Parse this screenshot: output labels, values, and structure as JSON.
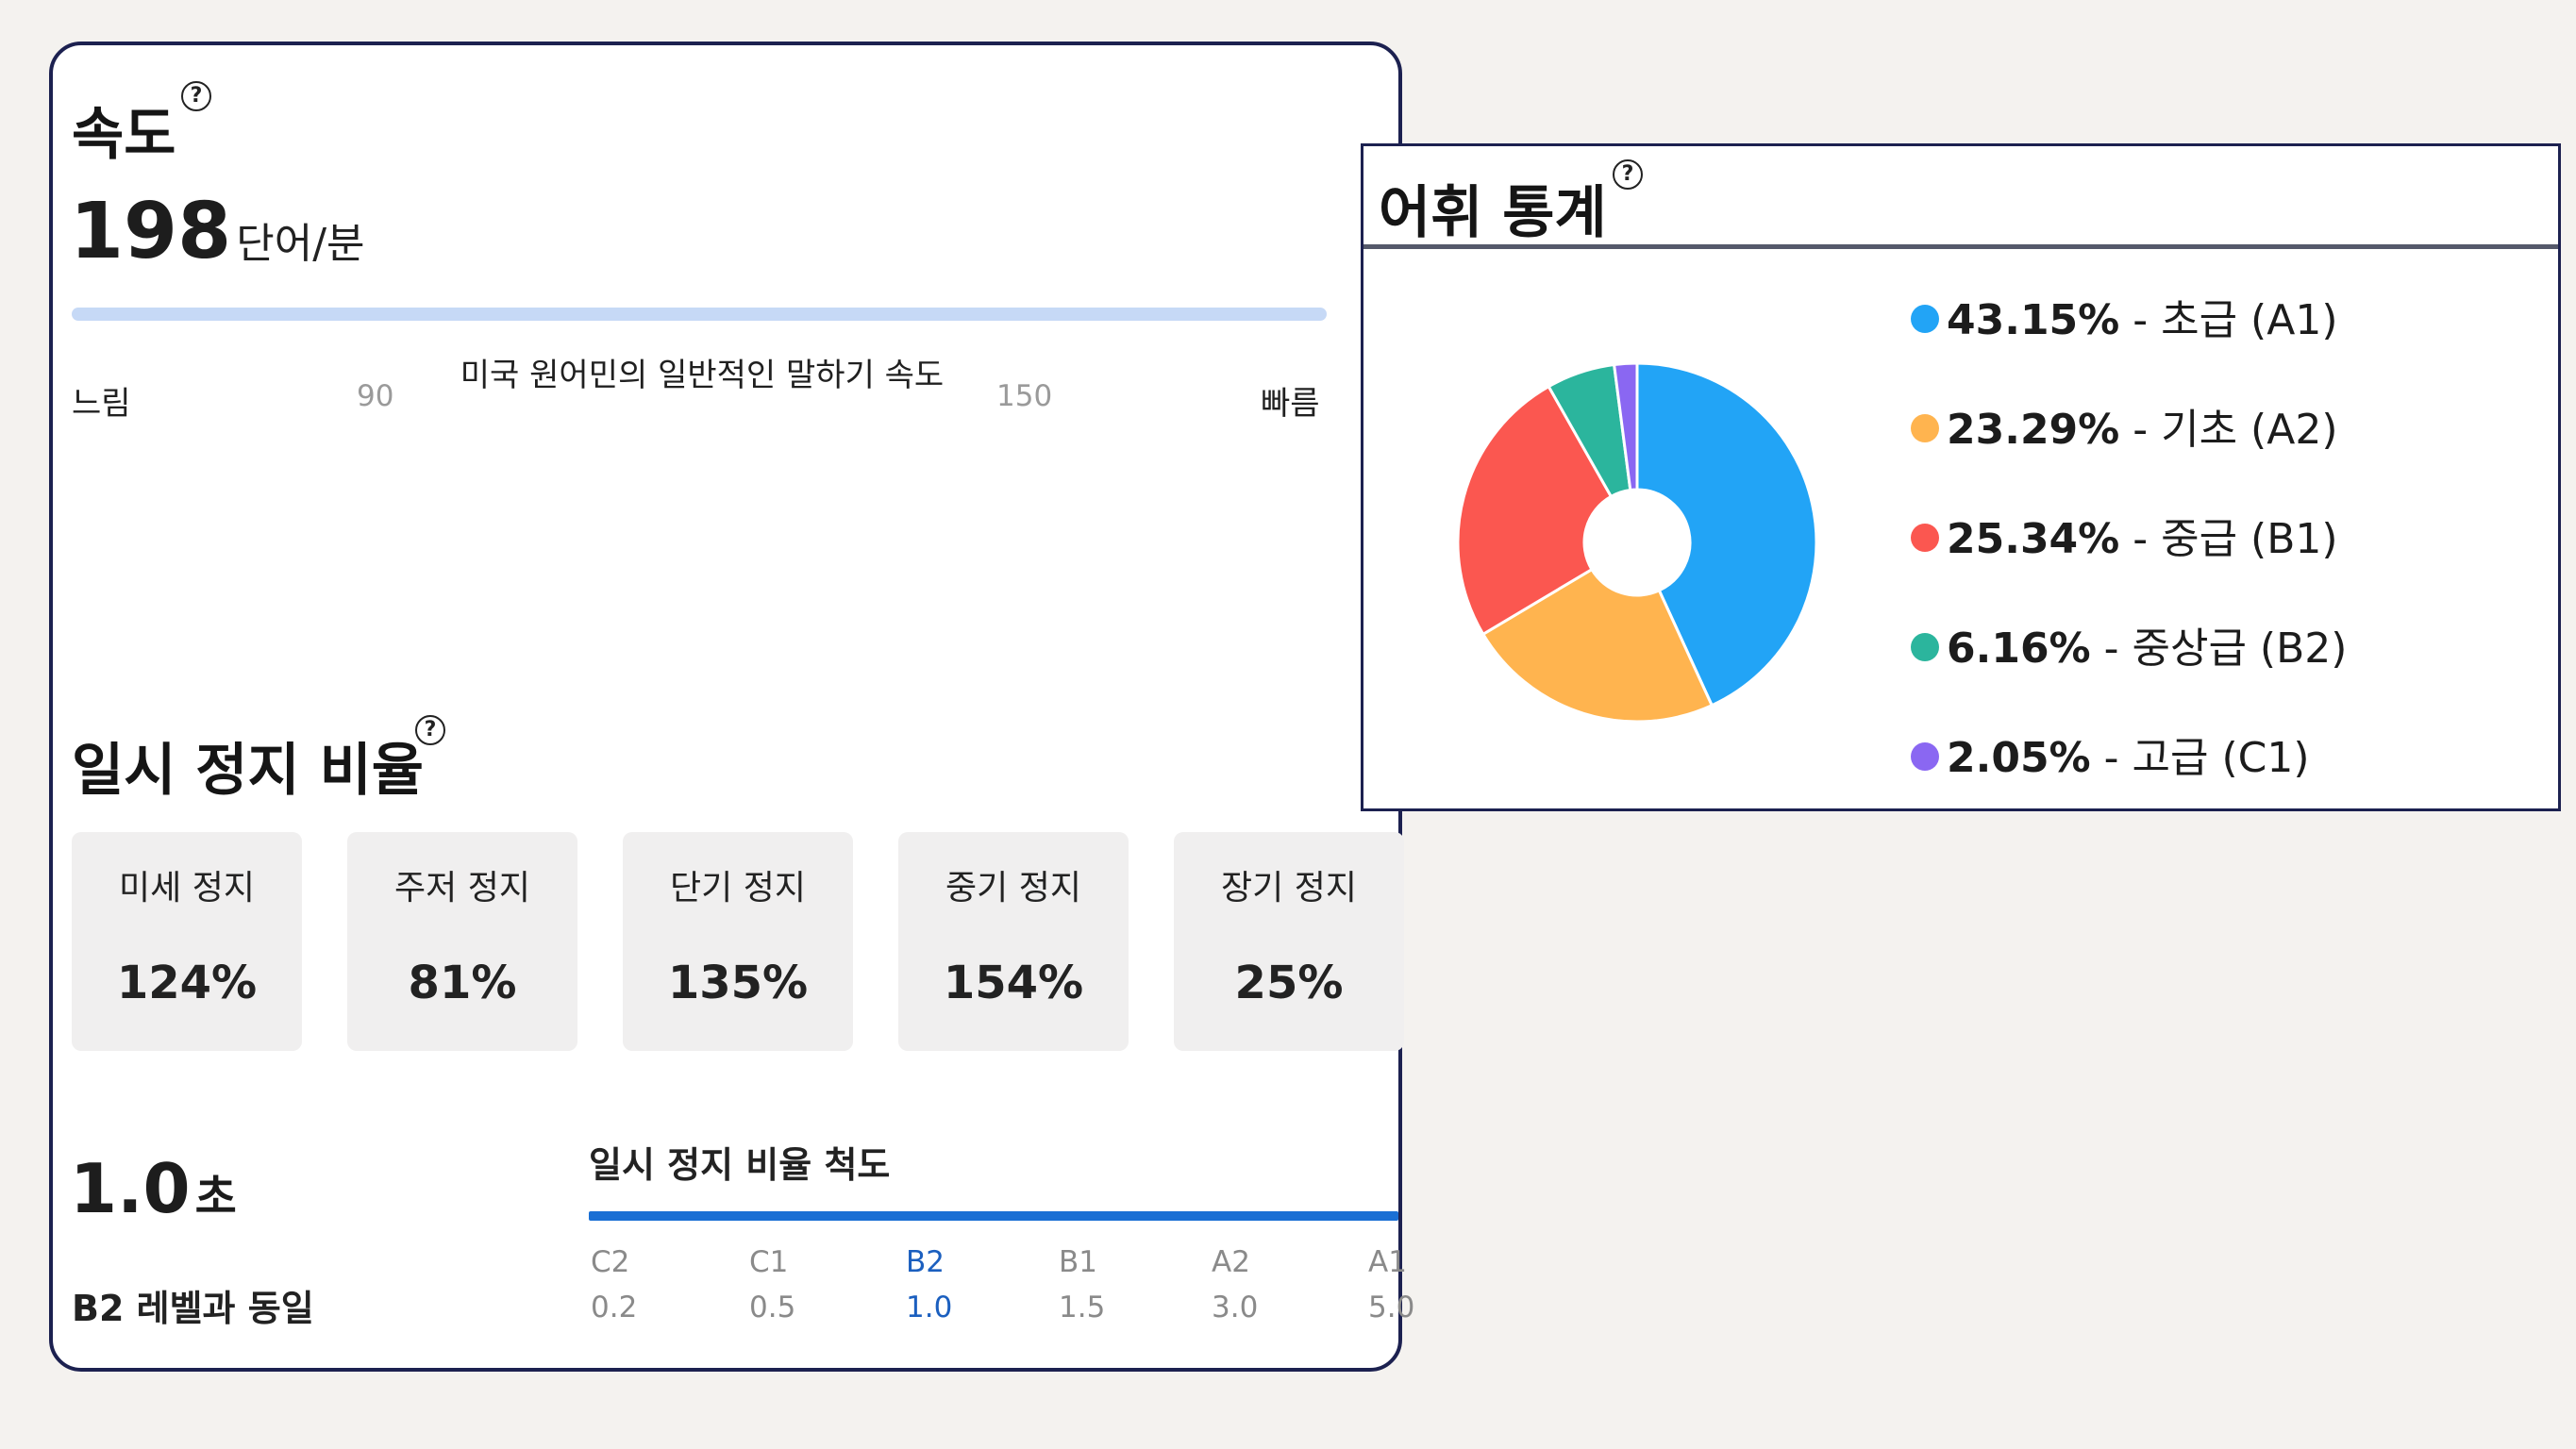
{
  "speed": {
    "title": "속도",
    "value": "198",
    "unit": "단어/분",
    "slow_label": "느림",
    "tick_low": "90",
    "center_label": "미국 원어민의 일반적인 말하기 속도",
    "tick_high": "150",
    "fast_label": "빠름"
  },
  "pause": {
    "title": "일시 정지 비율",
    "boxes": [
      {
        "label": "미세 정지",
        "value": "124%"
      },
      {
        "label": "주저 정지",
        "value": "81%"
      },
      {
        "label": "단기 정지",
        "value": "135%"
      },
      {
        "label": "중기 정지",
        "value": "154%"
      },
      {
        "label": "장기 정지",
        "value": "25%"
      }
    ],
    "seconds_value": "1.0",
    "seconds_unit": "초",
    "level_text": "B2 레벨과 동일",
    "scale_title": "일시 정지 비율 척도",
    "scale": [
      {
        "level": "C2",
        "value": "0.2"
      },
      {
        "level": "C1",
        "value": "0.5"
      },
      {
        "level": "B2",
        "value": "1.0"
      },
      {
        "level": "B1",
        "value": "1.5"
      },
      {
        "level": "A2",
        "value": "3.0"
      },
      {
        "level": "A1",
        "value": "5.0"
      }
    ],
    "active_level": "B2"
  },
  "vocab": {
    "title": "어휘 통계",
    "legend": [
      {
        "pct": "43.15%",
        "text": "- 초급 (A1)",
        "color": "#22a4f6"
      },
      {
        "pct": "23.29%",
        "text": "- 기초 (A2)",
        "color": "#ffb44f"
      },
      {
        "pct": "25.34%",
        "text": "- 중급 (B1)",
        "color": "#fb5750"
      },
      {
        "pct": "6.16%",
        "text": "- 중상급 (B2)",
        "color": "#2bb59d"
      },
      {
        "pct": "2.05%",
        "text": "- 고급 (C1)",
        "color": "#8a67f2"
      }
    ]
  },
  "chart_data": {
    "type": "pie",
    "categories": [
      "초급 (A1)",
      "기초 (A2)",
      "중급 (B1)",
      "중상급 (B2)",
      "고급 (C1)"
    ],
    "values": [
      43.15,
      23.29,
      25.34,
      6.16,
      2.05
    ],
    "colors": [
      "#22a4f6",
      "#ffb44f",
      "#fb5750",
      "#2bb59d",
      "#8a67f2"
    ],
    "donut": true
  },
  "icons": {
    "help": "question-circle-icon"
  }
}
